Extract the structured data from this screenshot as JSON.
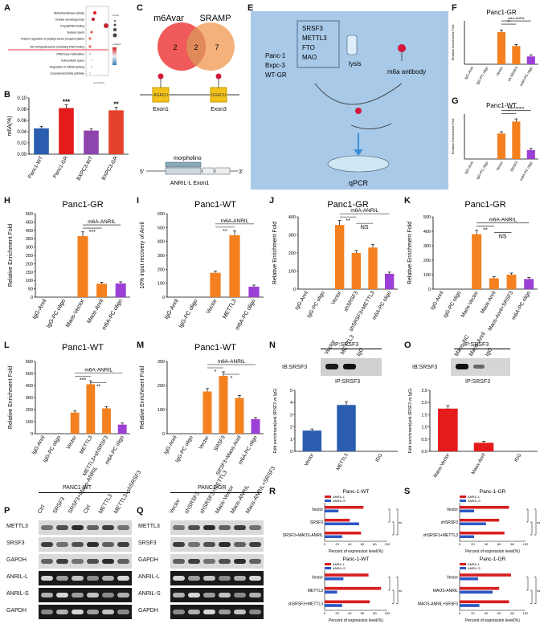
{
  "panel_letters": [
    "A",
    "B",
    "C",
    "D",
    "E",
    "F",
    "G",
    "H",
    "I",
    "J",
    "K",
    "L",
    "M",
    "N",
    "O",
    "P",
    "Q",
    "R",
    "S"
  ],
  "panelA": {
    "terms": [
      "Methyltransferase activity",
      "Ovarian steroidogenesis",
      "Poly(A)RNA binding",
      "Nuclear speck",
      "Positive regulation of peptidyl-serine phosphorylation",
      "N6-methyladenosine-containing RNA binding",
      "rRNA base methylation",
      "Extracellular space",
      "Regulation of mRNA splicing",
      "Lipopolysaccharide pathway"
    ],
    "xlabel": "GeneRatio",
    "size_legend_title": "Count",
    "color_legend_title": "p.adjust",
    "colors": {
      "high": "#d7191c",
      "low": "#2c7bb6"
    }
  },
  "panelC": {
    "left_label": "m6Avar",
    "right_label": "SRAMP",
    "left_only": "2",
    "overlap": "2",
    "right_only": "7",
    "motif1": "AGACU",
    "motif2": "GGACU",
    "exon1": "Exon1",
    "exon3": "Exon3",
    "morpholino": "morpholino",
    "gene_label": "ANRIL-L Exon1",
    "five_prime": "5'",
    "three_prime": "3'",
    "colors": {
      "left": "#f05a5a",
      "right": "#f4b27a",
      "exon": "#f2c21b"
    }
  },
  "panelE": {
    "cells": [
      "Panc-1",
      "Bxpc-3",
      "WT-GR"
    ],
    "proteins": [
      "SRSF3",
      "METTL3",
      "FTO",
      "MAO"
    ],
    "lysis": "lysis",
    "antibody": "m6a antibody",
    "qpcr": "qPCR",
    "colors": {
      "bg": "#a9c9e8"
    }
  },
  "barpanels": {
    "ylabel": "Relative Enrichment Fold",
    "ylabel_I": "10% input recovery of Anril",
    "annotation": "m6A-ANRIL",
    "colors": {
      "orange": "#f4801f",
      "purple": "#9b3fd6",
      "err": "#111111"
    }
  },
  "chart_data": [
    {
      "panel": "B",
      "type": "bar",
      "ylabel": "m6A(%)",
      "ylim": [
        0,
        0.1
      ],
      "yticks": [
        "0.00",
        "0.02",
        "0.04",
        "0.06",
        "0.08",
        "0.10"
      ],
      "categories": [
        "Panc1-WT",
        "Panc1-GR",
        "BXPC3-WT",
        "BXPC3-GR"
      ],
      "values": [
        0.046,
        0.082,
        0.042,
        0.078
      ],
      "colors": [
        "#2a5db0",
        "#e41a1c",
        "#8e44ad",
        "#e4402a"
      ],
      "sig": [
        "",
        "***",
        "",
        "**"
      ]
    },
    {
      "panel": "F",
      "type": "bar",
      "title": "Panc1-GR",
      "ylabel": "Relative Enrichment Fold",
      "ylim": [
        0,
        500
      ],
      "categories": [
        "IgG-Anril",
        "IgG-PC oligo",
        "Vector",
        "sh-SRSF3",
        "m6A-PC oligo"
      ],
      "values": [
        0,
        0,
        370,
        210,
        90
      ],
      "sig": [
        "**"
      ]
    },
    {
      "panel": "G",
      "type": "bar",
      "title": "Panc1-WT",
      "ylabel": "Relative Enrichment Fold",
      "ylim": [
        0,
        300
      ],
      "categories": [
        "IgG-Anril",
        "IgG-PC oligo",
        "Vector",
        "SRSF3",
        "m6A-PC oligo"
      ],
      "values": [
        0,
        0,
        170,
        250,
        60
      ],
      "sig": [
        "*"
      ]
    },
    {
      "panel": "H",
      "type": "bar",
      "title": "Panc1-GR",
      "ylabel": "Relative Enrichment Fold",
      "ylim": [
        0,
        500
      ],
      "yticks": [
        "0",
        "50",
        "100",
        "150",
        "200",
        "250",
        "300",
        "350",
        "400",
        "450",
        "500"
      ],
      "categories": [
        "IgG-Anril",
        "IgG-PC oligo",
        "Maos-Vector",
        "Maos-Anril",
        "m6A-PC oligo"
      ],
      "values": [
        0,
        0,
        365,
        80,
        82
      ],
      "sig": [
        "***"
      ]
    },
    {
      "panel": "I",
      "type": "bar",
      "title": "Panc1-WT",
      "ylabel": "10% input recovery of Anril",
      "ylim": [
        0,
        600
      ],
      "yticks": [
        "0",
        "100",
        "200",
        "300",
        "400",
        "500",
        "600"
      ],
      "categories": [
        "IgG-Anril",
        "IgG-PC oligo",
        "Vector",
        "METTL3",
        "m6A-PC oligo"
      ],
      "values": [
        0,
        0,
        175,
        445,
        75
      ],
      "sig": [
        "**"
      ]
    },
    {
      "panel": "J",
      "type": "bar",
      "title": "Panc1-GR",
      "ylabel": "Relative Enrichment Fold",
      "ylim": [
        0,
        400
      ],
      "yticks": [
        "0",
        "100",
        "200",
        "300",
        "400"
      ],
      "categories": [
        "IgG-Anril",
        "IgG-PC oligo",
        "Vector",
        "shSRSF3",
        "shSRSF3+METTL3",
        "m6A-PC oligo"
      ],
      "values": [
        0,
        0,
        355,
        200,
        230,
        85
      ],
      "sig": [
        "**",
        "NS"
      ]
    },
    {
      "panel": "K",
      "type": "bar",
      "title": "Panc1-GR",
      "ylabel": "Relative Enrichment Fold",
      "ylim": [
        0,
        500
      ],
      "yticks": [
        "0",
        "100",
        "200",
        "300",
        "400",
        "500"
      ],
      "categories": [
        "IgG-Anril",
        "IgG-PC oligo",
        "Maos-Vector",
        "Maos-Anril",
        "Maos-Anril+SRSF3",
        "m6A-PC oligo"
      ],
      "values": [
        0,
        0,
        380,
        75,
        100,
        70
      ],
      "sig": [
        "**",
        "NS"
      ]
    },
    {
      "panel": "L",
      "type": "bar",
      "title": "Panc1-WT",
      "ylabel": "Relative Enrichment Fold",
      "ylim": [
        0,
        600
      ],
      "yticks": [
        "0",
        "100",
        "200",
        "300",
        "400",
        "500",
        "600"
      ],
      "categories": [
        "IgG-Anril",
        "IgG-PC oligo",
        "Vector",
        "METTL3",
        "METTL3+shSRSF3",
        "m6A-PC oligo"
      ],
      "values": [
        0,
        0,
        175,
        410,
        210,
        75
      ],
      "sig": [
        "***",
        "**"
      ]
    },
    {
      "panel": "M",
      "type": "bar",
      "title": "Panc1-WT",
      "ylabel": "Relative Enrichment Fold",
      "ylim": [
        0,
        300
      ],
      "yticks": [
        "0",
        "100",
        "200",
        "300"
      ],
      "categories": [
        "IgG-Anril",
        "IgG-PC oligo",
        "Vector",
        "SRSF3",
        "SRSF3+Maos-Anril",
        "m6A-PC oligo"
      ],
      "values": [
        0,
        0,
        175,
        240,
        148,
        60
      ],
      "sig": [
        "*",
        "*"
      ]
    },
    {
      "panel": "N",
      "type": "bar",
      "ylabel": "Fold enrichment(anti-SRSF3 vs IgG)",
      "ylim": [
        0,
        5
      ],
      "yticks": [
        "0",
        "1",
        "2",
        "3",
        "4",
        "5"
      ],
      "categories": [
        "Vector",
        "METTL3",
        "IGG"
      ],
      "values": [
        1.7,
        3.8,
        0
      ],
      "colors": [
        "#2a5db0",
        "#2a5db0",
        "#2a5db0"
      ]
    },
    {
      "panel": "O",
      "type": "bar",
      "ylabel": "Fold enrichment(anti-SRSF3 vs IgG)",
      "ylim": [
        0,
        2.5
      ],
      "yticks": [
        "0.0",
        "0.5",
        "1.0",
        "1.5",
        "2.0",
        "2.5"
      ],
      "categories": [
        "Maos-Vector",
        "Maos-Anril",
        "IGG"
      ],
      "values": [
        1.75,
        0.35,
        0
      ],
      "colors": [
        "#e41a1c",
        "#e41a1c",
        "#e41a1c"
      ]
    },
    {
      "panel": "R1",
      "type": "hbar",
      "title": "Panc-1-WT",
      "xlabel": "Percent of expression level(%)",
      "categories": [
        "Vector",
        "SRSF3",
        "SRSF3+MAOS-ANRIL"
      ],
      "series": [
        {
          "name": "ANRIL-L",
          "values": [
            62,
            40,
            58
          ]
        },
        {
          "name": "ANRIL-S",
          "values": [
            22,
            55,
            28
          ]
        }
      ]
    },
    {
      "panel": "R2",
      "type": "hbar",
      "title": "Panc-1-WT",
      "xlabel": "Percent of expression level(%)",
      "categories": [
        "Vector",
        "METTL3",
        "shSRSF3+METTL3"
      ],
      "series": [
        {
          "name": "ANRIL-L",
          "values": [
            70,
            90,
            72
          ]
        },
        {
          "name": "ANRIL-S",
          "values": [
            30,
            20,
            28
          ]
        }
      ]
    },
    {
      "panel": "S1",
      "type": "hbar",
      "title": "Panc-1-GR",
      "xlabel": "Percent of expression level(%)",
      "categories": [
        "Vector",
        "shSRSF3",
        "shSRSF3+METTL3"
      ],
      "series": [
        {
          "name": "ANRIL-L",
          "values": [
            75,
            60,
            68
          ]
        },
        {
          "name": "ANRIL-S",
          "values": [
            22,
            40,
            22
          ]
        }
      ]
    },
    {
      "panel": "S2",
      "type": "hbar",
      "title": "Panc-1-GR",
      "xlabel": "Percent of expression level(%)",
      "categories": [
        "Vector",
        "MAOS-ANRIL",
        "MAOS-ANRIL+SRSF3"
      ],
      "series": [
        {
          "name": "ANRIL-L",
          "values": [
            78,
            60,
            75
          ]
        },
        {
          "name": "ANRIL-S",
          "values": [
            28,
            50,
            30
          ]
        }
      ]
    }
  ],
  "panelN": {
    "ip": "IP:SRSF3",
    "ib": "IB:SRSF3",
    "lanes": [
      "Vector",
      "METTL3",
      "IgG"
    ]
  },
  "panelO": {
    "ip": "IP:SRSF3",
    "ib": "IB:SRSF3",
    "lanes": [
      "Maos-NC",
      "Maos-Anril",
      "IgG"
    ]
  },
  "panelP": {
    "title": "PANC1-WT",
    "lanes": [
      "Ctrl",
      "SRSF3",
      "SRSF3+Maos-ANRIL",
      "Ctrl",
      "METTL3",
      "METTL3+shSRSF3"
    ],
    "rows": [
      "METTL3",
      "SRSF3",
      "GAPDH",
      "ANRIL-L",
      "ANRIL-S",
      "GAPDH"
    ]
  },
  "panelQ": {
    "title": "PANC1-GR",
    "lanes": [
      "Vector",
      "shSRSF3",
      "shSRSF3+METTL3",
      "Maos-Vector",
      "Maos-ANRIL",
      "Maos-ANRIL+SRSF3"
    ],
    "rows": [
      "METTL3",
      "SRSF3",
      "GAPDH",
      "ANRIL-L",
      "ANRIL-S",
      "GAPDH"
    ]
  },
  "hbar_legend": [
    "ANRIL-L",
    "ANRIL-S"
  ],
  "hbar_ns": "ns",
  "hbar_colors": {
    "L": "#d81e1e",
    "S": "#2c57c5"
  }
}
